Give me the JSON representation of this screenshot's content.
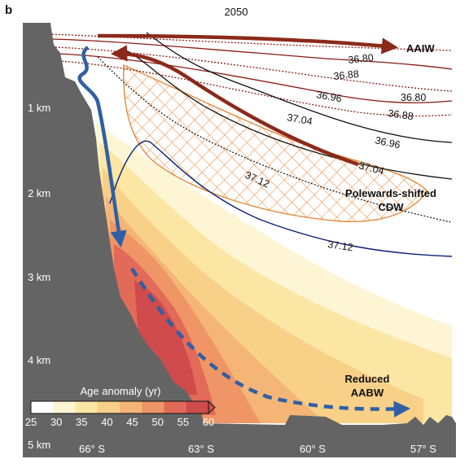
{
  "panel_letter": "b",
  "year": "2050",
  "depth_labels": [
    "1 km",
    "2 km",
    "3 km",
    "4 km",
    "5 km"
  ],
  "lat_labels": [
    "66° S",
    "63° S",
    "60° S",
    "57° S"
  ],
  "contour_labels": [
    "36.80",
    "36.88",
    "36.80",
    "36.96",
    "36.88",
    "37.04",
    "36.96",
    "37.04",
    "37.12",
    "37.12"
  ],
  "annotations": {
    "aaiw": "AAIW",
    "cdw_line1": "Polewards-shifted",
    "cdw_line2": "CDW",
    "aabw_line1": "Reduced",
    "aabw_line2": "AABW"
  },
  "colorbar": {
    "title": "Age anomaly (yr)",
    "ticks": [
      "25",
      "30",
      "35",
      "40",
      "45",
      "50",
      "55",
      "60"
    ],
    "colors": [
      "#ffffff",
      "#fdf5d3",
      "#fbe6a4",
      "#f8d088",
      "#f5b577",
      "#ef9566",
      "#e26a58",
      "#d04b4b"
    ]
  },
  "colors": {
    "bathymetry": "#646464",
    "salinity_dark": "#111111",
    "salinity_red": "#8b1a14",
    "isoline_blue": "#0b1f7a",
    "arrow_red": "#8b2a1a",
    "arrow_blue": "#2f5fa5",
    "cdw_hatch": "#e38a3c"
  }
}
